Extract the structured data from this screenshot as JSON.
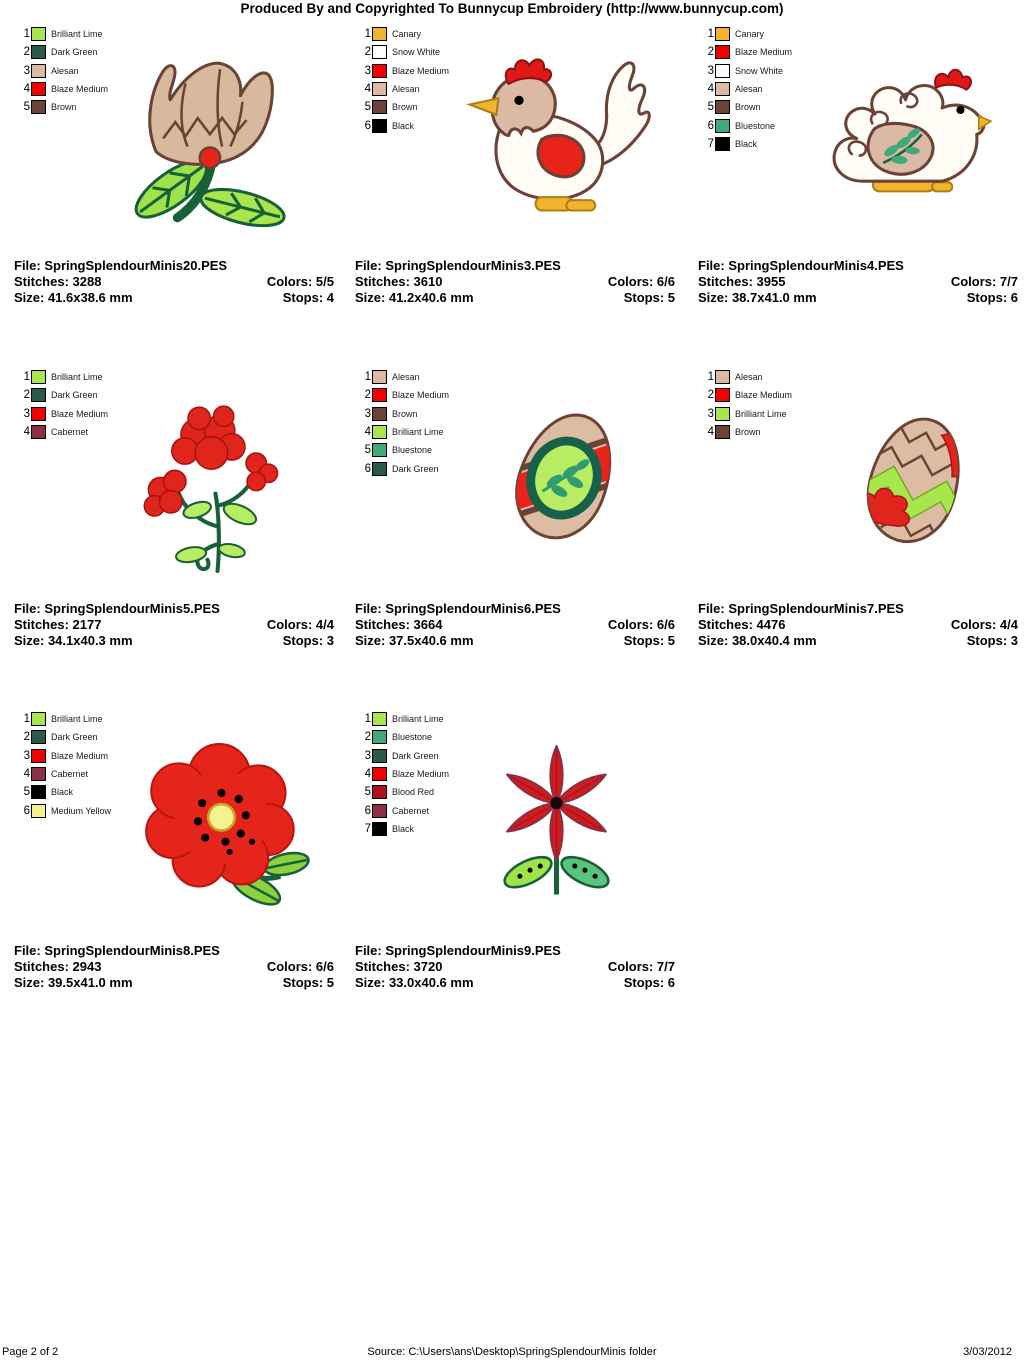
{
  "header": {
    "title": "Produced By and Copyrighted To Bunnycup Embroidery (http://www.bunnycup.com)"
  },
  "designs": [
    {
      "subject": "tulip",
      "file": "File: SpringSplendourMinis20.PES",
      "stitches": "Stitches: 3288",
      "colors": "Colors: 5/5",
      "size": "Size: 41.6x38.6 mm",
      "stops": "Stops: 4",
      "threads": [
        {
          "num": "1",
          "name": "Brilliant Lime",
          "color": "#a9e64d"
        },
        {
          "num": "2",
          "name": "Dark Green",
          "color": "#2b5948"
        },
        {
          "num": "3",
          "name": "Alesan",
          "color": "#dcb9a4"
        },
        {
          "num": "4",
          "name": "Blaze Medium",
          "color": "#f20000"
        },
        {
          "num": "5",
          "name": "Brown",
          "color": "#6b4236"
        }
      ]
    },
    {
      "subject": "rooster",
      "file": "File: SpringSplendourMinis3.PES",
      "stitches": "Stitches: 3610",
      "colors": "Colors: 6/6",
      "size": "Size: 41.2x40.6 mm",
      "stops": "Stops: 5",
      "threads": [
        {
          "num": "1",
          "name": "Canary",
          "color": "#f0b42f"
        },
        {
          "num": "2",
          "name": "Snow White",
          "color": "#ffffff"
        },
        {
          "num": "3",
          "name": "Blaze Medium",
          "color": "#f20000"
        },
        {
          "num": "4",
          "name": "Alesan",
          "color": "#dcb9a4"
        },
        {
          "num": "5",
          "name": "Brown",
          "color": "#6b4236"
        },
        {
          "num": "6",
          "name": "Black",
          "color": "#000000"
        }
      ]
    },
    {
      "subject": "hen",
      "file": "File: SpringSplendourMinis4.PES",
      "stitches": "Stitches: 3955",
      "colors": "Colors: 7/7",
      "size": "Size: 38.7x41.0 mm",
      "stops": "Stops: 6",
      "threads": [
        {
          "num": "1",
          "name": "Canary",
          "color": "#f0b42f"
        },
        {
          "num": "2",
          "name": "Blaze Medium",
          "color": "#f20000"
        },
        {
          "num": "3",
          "name": "Snow White",
          "color": "#ffffff"
        },
        {
          "num": "4",
          "name": "Alesan",
          "color": "#dcb9a4"
        },
        {
          "num": "5",
          "name": "Brown",
          "color": "#6b4236"
        },
        {
          "num": "6",
          "name": "Bluestone",
          "color": "#3fa97c"
        },
        {
          "num": "7",
          "name": "Black",
          "color": "#000000"
        }
      ]
    },
    {
      "subject": "red-flowers",
      "file": "File: SpringSplendourMinis5.PES",
      "stitches": "Stitches: 2177",
      "colors": "Colors: 4/4",
      "size": "Size: 34.1x40.3 mm",
      "stops": "Stops: 3",
      "threads": [
        {
          "num": "1",
          "name": "Brilliant Lime",
          "color": "#a9e64d"
        },
        {
          "num": "2",
          "name": "Dark Green",
          "color": "#2b5948"
        },
        {
          "num": "3",
          "name": "Blaze Medium",
          "color": "#f20000"
        },
        {
          "num": "4",
          "name": "Cabernet",
          "color": "#8c2f45"
        }
      ]
    },
    {
      "subject": "leaf-medallion-egg",
      "file": "File: SpringSplendourMinis6.PES",
      "stitches": "Stitches: 3664",
      "colors": "Colors: 6/6",
      "size": "Size: 37.5x40.6 mm",
      "stops": "Stops: 5",
      "threads": [
        {
          "num": "1",
          "name": "Alesan",
          "color": "#dcb9a4"
        },
        {
          "num": "2",
          "name": "Blaze Medium",
          "color": "#f20000"
        },
        {
          "num": "3",
          "name": "Brown",
          "color": "#6b4236"
        },
        {
          "num": "4",
          "name": "Brilliant Lime",
          "color": "#a9e64d"
        },
        {
          "num": "5",
          "name": "Bluestone",
          "color": "#3fa97c"
        },
        {
          "num": "6",
          "name": "Dark Green",
          "color": "#2b5948"
        }
      ]
    },
    {
      "subject": "zigzag-egg",
      "file": "File: SpringSplendourMinis7.PES",
      "stitches": "Stitches: 4476",
      "colors": "Colors: 4/4",
      "size": "Size: 38.0x40.4 mm",
      "stops": "Stops: 3",
      "threads": [
        {
          "num": "1",
          "name": "Alesan",
          "color": "#dcb9a4"
        },
        {
          "num": "2",
          "name": "Blaze Medium",
          "color": "#f20000"
        },
        {
          "num": "3",
          "name": "Brilliant Lime",
          "color": "#a9e64d"
        },
        {
          "num": "4",
          "name": "Brown",
          "color": "#6b4236"
        }
      ]
    },
    {
      "subject": "poppy",
      "file": "File: SpringSplendourMinis8.PES",
      "stitches": "Stitches: 2943",
      "colors": "Colors: 6/6",
      "size": "Size: 39.5x41.0 mm",
      "stops": "Stops: 5",
      "threads": [
        {
          "num": "1",
          "name": "Brilliant Lime",
          "color": "#a9e64d"
        },
        {
          "num": "2",
          "name": "Dark Green",
          "color": "#2b5948"
        },
        {
          "num": "3",
          "name": "Blaze Medium",
          "color": "#f20000"
        },
        {
          "num": "4",
          "name": "Cabernet",
          "color": "#8c2f45"
        },
        {
          "num": "5",
          "name": "Black",
          "color": "#000000"
        },
        {
          "num": "6",
          "name": "Medium Yellow",
          "color": "#f5f08d"
        }
      ]
    },
    {
      "subject": "star-flower",
      "file": "File: SpringSplendourMinis9.PES",
      "stitches": "Stitches: 3720",
      "colors": "Colors: 7/7",
      "size": "Size: 33.0x40.6 mm",
      "stops": "Stops: 6",
      "threads": [
        {
          "num": "1",
          "name": "Brilliant Lime",
          "color": "#a9e64d"
        },
        {
          "num": "2",
          "name": "Bluestone",
          "color": "#3fa97c"
        },
        {
          "num": "3",
          "name": "Dark Green",
          "color": "#2b5948"
        },
        {
          "num": "4",
          "name": "Blaze Medium",
          "color": "#f20000"
        },
        {
          "num": "5",
          "name": "Blood Red",
          "color": "#b0111e"
        },
        {
          "num": "6",
          "name": "Cabernet",
          "color": "#8c2f45"
        },
        {
          "num": "7",
          "name": "Black",
          "color": "#000000"
        }
      ]
    }
  ],
  "footer": {
    "page": "Page 2 of 2",
    "source": "Source: C:\\Users\\ans\\Desktop\\SpringSplendourMinis folder",
    "date": "3/03/2012"
  }
}
